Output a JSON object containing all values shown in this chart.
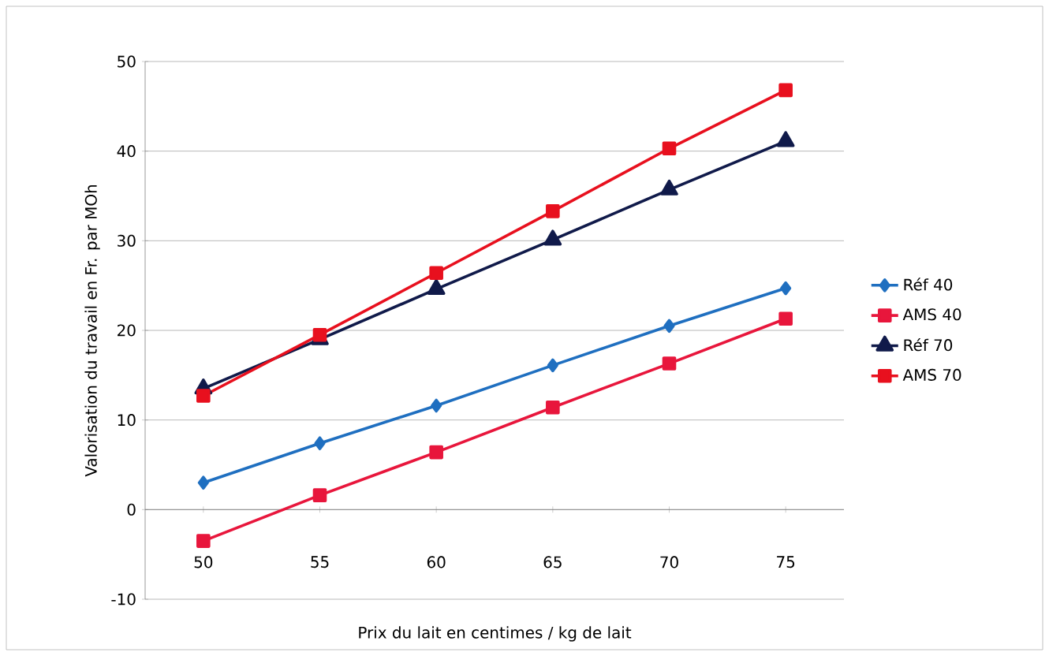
{
  "chart_data": {
    "type": "line",
    "xlabel": "Prix du lait en centimes / kg de lait",
    "ylabel": "Valorisation du travail en Fr. par MOh",
    "categories": [
      "50",
      "55",
      "60",
      "65",
      "70",
      "75"
    ],
    "series": [
      {
        "name": "Réf 40",
        "color": "#1f6fc0",
        "marker": "diamond",
        "values": [
          3.0,
          7.4,
          11.6,
          16.1,
          20.5,
          24.7
        ]
      },
      {
        "name": "AMS 40",
        "color": "#e8163c",
        "marker": "square",
        "values": [
          -3.5,
          1.6,
          6.4,
          11.4,
          16.3,
          21.3
        ]
      },
      {
        "name": "Réf 70",
        "color": "#101a4a",
        "marker": "triangle",
        "values": [
          13.5,
          19.0,
          24.6,
          30.1,
          35.7,
          41.1
        ]
      },
      {
        "name": "AMS 70",
        "color": "#e8101e",
        "marker": "square",
        "values": [
          12.7,
          19.5,
          26.4,
          33.3,
          40.3,
          46.8
        ]
      }
    ],
    "ylim": [
      -10,
      50
    ],
    "yticks": [
      -10,
      0,
      10,
      20,
      30,
      40,
      50
    ],
    "grid": "y",
    "legend": "right",
    "line_style": "solid"
  }
}
